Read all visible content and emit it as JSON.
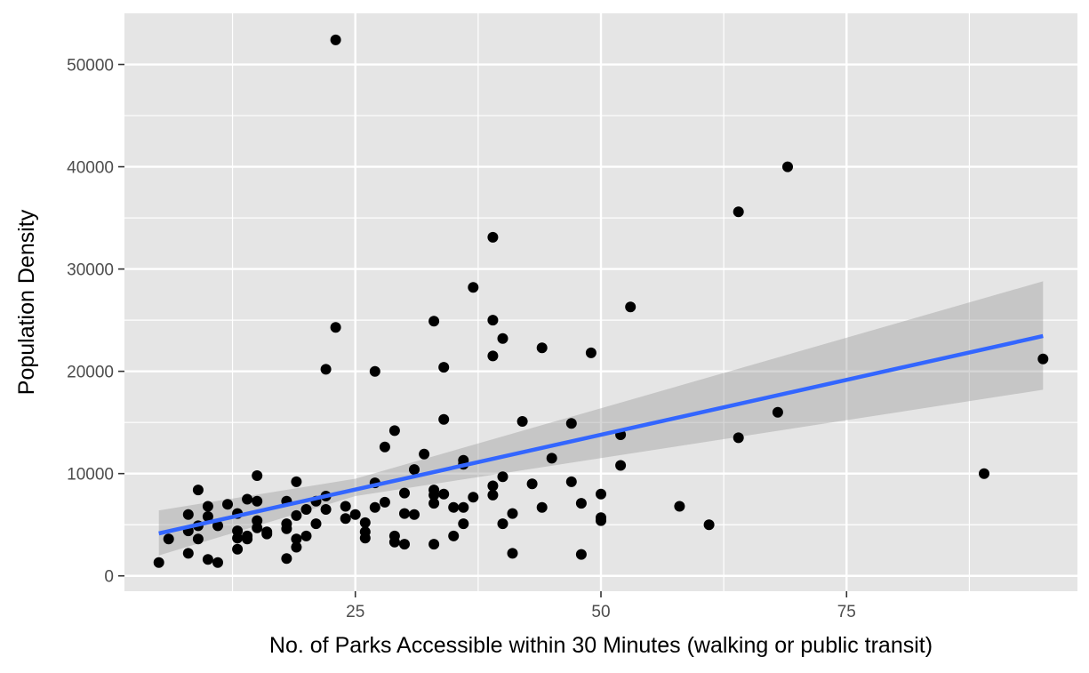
{
  "chart_data": {
    "type": "scatter",
    "xlabel": "No. of Parks Accessible within 30 Minutes (walking or public transit)",
    "ylabel": "Population Density",
    "xlim": [
      1.5,
      98.5
    ],
    "ylim": [
      -1500,
      55000
    ],
    "x_ticks": [
      25,
      50,
      75
    ],
    "x_tick_labels": [
      "25",
      "50",
      "75"
    ],
    "x_minor_ticks": [
      12.5,
      37.5,
      62.5,
      87.5
    ],
    "y_ticks": [
      0,
      10000,
      20000,
      30000,
      40000,
      50000
    ],
    "y_tick_labels": [
      "0",
      "10000",
      "20000",
      "30000",
      "40000",
      "50000"
    ],
    "y_minor_ticks": [
      5000,
      15000,
      25000,
      35000,
      45000
    ],
    "grid": true,
    "colors": {
      "panel": "#e5e5e5",
      "grid": "#ffffff",
      "points": "#000000",
      "fit_line": "#3366ff",
      "ribbon": "#999999"
    },
    "points": [
      [
        5,
        1300
      ],
      [
        6,
        3600
      ],
      [
        8,
        2200
      ],
      [
        8,
        6000
      ],
      [
        8,
        4400
      ],
      [
        9,
        8400
      ],
      [
        9,
        3600
      ],
      [
        9,
        4900
      ],
      [
        10,
        6800
      ],
      [
        10,
        5800
      ],
      [
        10,
        1600
      ],
      [
        11,
        1300
      ],
      [
        11,
        4900
      ],
      [
        12,
        7000
      ],
      [
        13,
        6100
      ],
      [
        13,
        4400
      ],
      [
        13,
        3700
      ],
      [
        13,
        2600
      ],
      [
        14,
        7500
      ],
      [
        14,
        3600
      ],
      [
        14,
        3900
      ],
      [
        15,
        9800
      ],
      [
        15,
        7300
      ],
      [
        15,
        5400
      ],
      [
        15,
        4700
      ],
      [
        16,
        4300
      ],
      [
        16,
        4100
      ],
      [
        18,
        7300
      ],
      [
        18,
        5100
      ],
      [
        18,
        4600
      ],
      [
        18,
        1700
      ],
      [
        19,
        9200
      ],
      [
        19,
        5900
      ],
      [
        19,
        3600
      ],
      [
        19,
        2800
      ],
      [
        20,
        6500
      ],
      [
        20,
        3900
      ],
      [
        21,
        7300
      ],
      [
        21,
        5100
      ],
      [
        22,
        20200
      ],
      [
        22,
        7800
      ],
      [
        22,
        6500
      ],
      [
        23,
        52400
      ],
      [
        23,
        24300
      ],
      [
        24,
        6800
      ],
      [
        24,
        5600
      ],
      [
        25,
        6000
      ],
      [
        26,
        5200
      ],
      [
        26,
        4300
      ],
      [
        26,
        3700
      ],
      [
        27,
        20000
      ],
      [
        27,
        9100
      ],
      [
        27,
        6700
      ],
      [
        28,
        12600
      ],
      [
        28,
        7200
      ],
      [
        29,
        14200
      ],
      [
        29,
        3900
      ],
      [
        29,
        3300
      ],
      [
        30,
        8100
      ],
      [
        30,
        6100
      ],
      [
        30,
        3100
      ],
      [
        31,
        10400
      ],
      [
        31,
        6000
      ],
      [
        32,
        11900
      ],
      [
        33,
        24900
      ],
      [
        33,
        8400
      ],
      [
        33,
        7900
      ],
      [
        33,
        7100
      ],
      [
        33,
        3100
      ],
      [
        34,
        20400
      ],
      [
        34,
        15300
      ],
      [
        34,
        8000
      ],
      [
        35,
        6700
      ],
      [
        35,
        3900
      ],
      [
        36,
        11300
      ],
      [
        36,
        10900
      ],
      [
        36,
        6700
      ],
      [
        36,
        5100
      ],
      [
        37,
        28200
      ],
      [
        37,
        7700
      ],
      [
        39,
        33100
      ],
      [
        39,
        25000
      ],
      [
        39,
        21500
      ],
      [
        39,
        8800
      ],
      [
        39,
        7900
      ],
      [
        40,
        23200
      ],
      [
        40,
        9700
      ],
      [
        40,
        5100
      ],
      [
        41,
        6100
      ],
      [
        41,
        2200
      ],
      [
        42,
        15100
      ],
      [
        43,
        9000
      ],
      [
        44,
        22300
      ],
      [
        44,
        6700
      ],
      [
        45,
        11500
      ],
      [
        47,
        14900
      ],
      [
        47,
        9200
      ],
      [
        48,
        7100
      ],
      [
        48,
        2100
      ],
      [
        49,
        21800
      ],
      [
        50,
        8000
      ],
      [
        50,
        5700
      ],
      [
        50,
        5400
      ],
      [
        52,
        13800
      ],
      [
        52,
        10800
      ],
      [
        53,
        26300
      ],
      [
        58,
        6800
      ],
      [
        61,
        5000
      ],
      [
        64,
        35600
      ],
      [
        64,
        13500
      ],
      [
        68,
        16000
      ],
      [
        69,
        40000
      ],
      [
        89,
        10000
      ],
      [
        95,
        21200
      ]
    ],
    "fit": {
      "x": [
        5,
        95
      ],
      "y": [
        4150,
        23450
      ],
      "ci_lower": [
        2000,
        18200
      ],
      "ci_upper": [
        6400,
        28800
      ],
      "ci_x_mid": 25,
      "ci_y_mid": [
        7800,
        9500
      ]
    }
  }
}
